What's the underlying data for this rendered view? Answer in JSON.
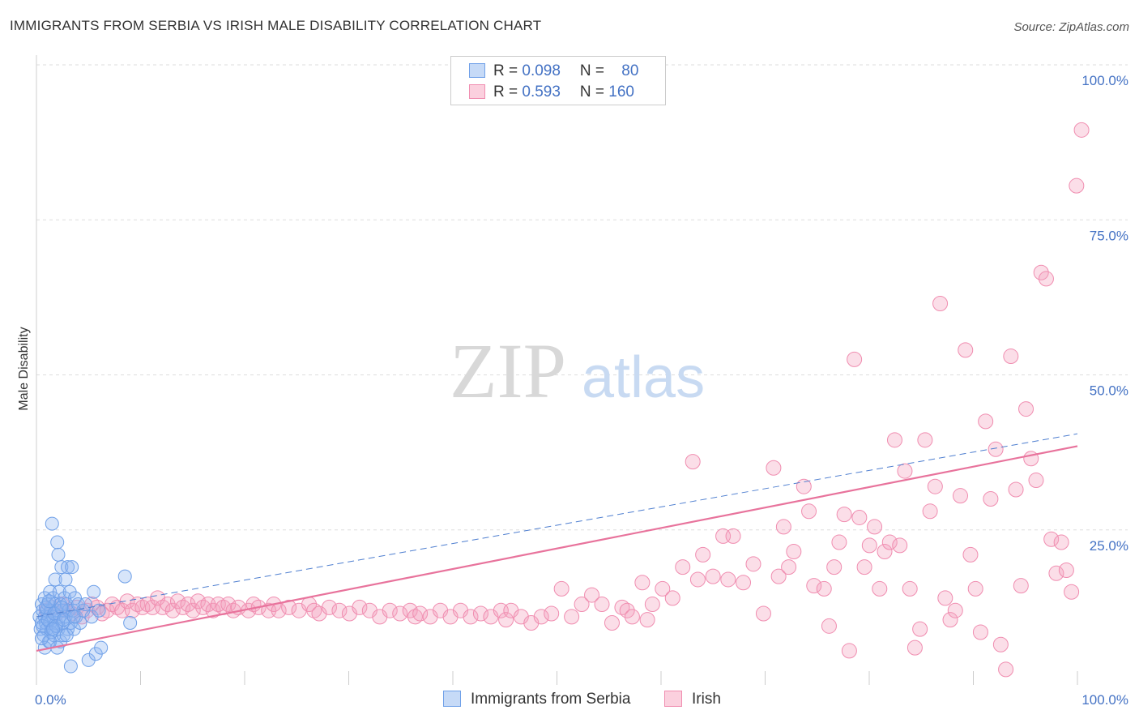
{
  "header": {
    "title": "IMMIGRANTS FROM SERBIA VS IRISH MALE DISABILITY CORRELATION CHART",
    "source": "Source: ZipAtlas.com"
  },
  "watermark": {
    "zip": "ZIP",
    "atlas": "atlas"
  },
  "legend": {
    "rows": [
      {
        "r_label": "R = ",
        "r_value": "0.098",
        "n_label": "N = ",
        "n_value": "80",
        "color": "#6fa0e8"
      },
      {
        "r_label": "R = ",
        "r_value": "0.593",
        "n_label": "N = ",
        "n_value": "160",
        "color": "#f08db0"
      }
    ]
  },
  "bottom_legend": {
    "serbia_label": "Immigrants from Serbia",
    "irish_label": "Irish"
  },
  "chart_data": {
    "type": "scatter",
    "title": "IMMIGRANTS FROM SERBIA VS IRISH MALE DISABILITY CORRELATION CHART",
    "xlabel": "",
    "ylabel": "Male Disability",
    "xlim": [
      0,
      100
    ],
    "ylim": [
      0,
      100
    ],
    "x_tick_labels": [
      "0.0%",
      "100.0%"
    ],
    "y_tick_labels": [
      "25.0%",
      "50.0%",
      "75.0%",
      "100.0%"
    ],
    "y_ticks": [
      25,
      50,
      75,
      100
    ],
    "colors": {
      "serbia": "#6fa0e8",
      "irish": "#f08db0",
      "serbia_line": "#4f7fd0",
      "irish_line": "#e8739c"
    },
    "series": [
      {
        "name": "Immigrants from Serbia",
        "r": 0.098,
        "n": 80,
        "trend": {
          "x": [
            0,
            100
          ],
          "y": [
            11.0,
            40.5
          ],
          "style": "dashed"
        },
        "points": [
          [
            0.3,
            11
          ],
          [
            0.4,
            9
          ],
          [
            0.5,
            13
          ],
          [
            0.5,
            10
          ],
          [
            0.6,
            12
          ],
          [
            0.7,
            8
          ],
          [
            0.8,
            11
          ],
          [
            0.8,
            14
          ],
          [
            0.9,
            10
          ],
          [
            1.0,
            12
          ],
          [
            1.0,
            9
          ],
          [
            1.1,
            13
          ],
          [
            1.2,
            11
          ],
          [
            1.2,
            7
          ],
          [
            1.3,
            15
          ],
          [
            1.3,
            10
          ],
          [
            1.4,
            12
          ],
          [
            1.5,
            9
          ],
          [
            1.5,
            26
          ],
          [
            1.6,
            14
          ],
          [
            1.6,
            11
          ],
          [
            1.7,
            8
          ],
          [
            1.8,
            13
          ],
          [
            1.8,
            17
          ],
          [
            1.9,
            10
          ],
          [
            2.0,
            12
          ],
          [
            2.0,
            23
          ],
          [
            2.1,
            9
          ],
          [
            2.1,
            21
          ],
          [
            2.2,
            15
          ],
          [
            2.2,
            11
          ],
          [
            2.3,
            13
          ],
          [
            2.3,
            7
          ],
          [
            2.4,
            19
          ],
          [
            2.5,
            10
          ],
          [
            2.5,
            12
          ],
          [
            2.6,
            8
          ],
          [
            2.7,
            14
          ],
          [
            2.8,
            11
          ],
          [
            2.8,
            17
          ],
          [
            2.9,
            13
          ],
          [
            3.0,
            19
          ],
          [
            3.0,
            9
          ],
          [
            3.1,
            12
          ],
          [
            3.2,
            15
          ],
          [
            3.3,
            10
          ],
          [
            3.3,
            3
          ],
          [
            3.4,
            19
          ],
          [
            3.5,
            12
          ],
          [
            3.6,
            9
          ],
          [
            3.7,
            14
          ],
          [
            3.8,
            11
          ],
          [
            4.0,
            13
          ],
          [
            4.2,
            10
          ],
          [
            4.5,
            12
          ],
          [
            4.7,
            13
          ],
          [
            5.0,
            4
          ],
          [
            5.3,
            11
          ],
          [
            5.5,
            15
          ],
          [
            5.7,
            5
          ],
          [
            6.0,
            12
          ],
          [
            6.2,
            6
          ],
          [
            0.6,
            9.5
          ],
          [
            0.9,
            12.5
          ],
          [
            1.1,
            10.5
          ],
          [
            1.4,
            8.5
          ],
          [
            1.7,
            11.5
          ],
          [
            1.9,
            9.5
          ],
          [
            2.4,
            12.5
          ],
          [
            2.6,
            10.5
          ],
          [
            0.8,
            6
          ],
          [
            1.3,
            7
          ],
          [
            2.0,
            6
          ],
          [
            1.6,
            9
          ],
          [
            0.5,
            7.5
          ],
          [
            1.2,
            13.5
          ],
          [
            2.9,
            8
          ],
          [
            3.6,
            11
          ],
          [
            8.5,
            17.5
          ],
          [
            9.0,
            10
          ]
        ]
      },
      {
        "name": "Irish",
        "r": 0.593,
        "n": 160,
        "trend": {
          "x": [
            0,
            100
          ],
          "y": [
            5.5,
            38.5
          ],
          "style": "solid"
        },
        "points": [
          [
            1,
            12
          ],
          [
            1.5,
            12.5
          ],
          [
            2,
            11.5
          ],
          [
            2.5,
            13
          ],
          [
            3,
            12
          ],
          [
            3.5,
            11.5
          ],
          [
            4,
            12.5
          ],
          [
            4.5,
            11
          ],
          [
            5,
            12
          ],
          [
            5.5,
            13
          ],
          [
            6,
            12.5
          ],
          [
            6.5,
            11.5
          ],
          [
            7,
            12
          ],
          [
            7.5,
            13
          ],
          [
            8,
            12.5
          ],
          [
            8.5,
            12
          ],
          [
            9,
            13.5
          ],
          [
            9.5,
            12
          ],
          [
            10,
            13
          ],
          [
            10.5,
            12.5
          ],
          [
            11,
            13
          ],
          [
            11.5,
            12.5
          ],
          [
            12,
            14
          ],
          [
            12.5,
            12.5
          ],
          [
            13,
            13
          ],
          [
            13.5,
            12
          ],
          [
            14,
            13.5
          ],
          [
            14.5,
            12.5
          ],
          [
            15,
            13
          ],
          [
            15.5,
            12
          ],
          [
            16,
            13.5
          ],
          [
            16.5,
            12.5
          ],
          [
            17,
            13
          ],
          [
            17.5,
            12
          ],
          [
            18,
            13
          ],
          [
            18.5,
            12.5
          ],
          [
            19,
            13
          ],
          [
            19.5,
            12
          ],
          [
            20,
            12.5
          ],
          [
            21,
            12
          ],
          [
            21.5,
            13
          ],
          [
            22,
            12.5
          ],
          [
            23,
            12
          ],
          [
            23.5,
            13
          ],
          [
            24,
            12
          ],
          [
            25,
            12.5
          ],
          [
            26,
            12
          ],
          [
            27,
            13
          ],
          [
            27.5,
            12
          ],
          [
            28,
            11.5
          ],
          [
            29,
            12.5
          ],
          [
            30,
            12
          ],
          [
            31,
            11.5
          ],
          [
            32,
            12.5
          ],
          [
            33,
            12
          ],
          [
            34,
            11
          ],
          [
            35,
            12
          ],
          [
            36,
            11.5
          ],
          [
            37,
            12
          ],
          [
            37.5,
            11
          ],
          [
            38,
            11.5
          ],
          [
            39,
            11
          ],
          [
            40,
            12
          ],
          [
            41,
            11
          ],
          [
            42,
            12
          ],
          [
            43,
            11
          ],
          [
            44,
            11.5
          ],
          [
            45,
            11
          ],
          [
            46,
            12
          ],
          [
            46.5,
            10.5
          ],
          [
            47,
            12
          ],
          [
            48,
            11
          ],
          [
            49,
            10
          ],
          [
            50,
            11
          ],
          [
            51,
            11.5
          ],
          [
            52,
            15.5
          ],
          [
            53,
            11
          ],
          [
            54,
            13
          ],
          [
            55,
            14.5
          ],
          [
            56,
            13
          ],
          [
            57,
            10
          ],
          [
            58,
            12.5
          ],
          [
            58.5,
            12
          ],
          [
            59,
            11
          ],
          [
            60,
            16.5
          ],
          [
            60.5,
            10.5
          ],
          [
            61,
            13
          ],
          [
            62,
            15.5
          ],
          [
            63,
            14
          ],
          [
            64,
            19
          ],
          [
            65,
            36
          ],
          [
            65.5,
            17
          ],
          [
            66,
            21
          ],
          [
            67,
            17.5
          ],
          [
            68,
            24
          ],
          [
            68.5,
            17
          ],
          [
            69,
            24
          ],
          [
            70,
            16.5
          ],
          [
            71,
            19.5
          ],
          [
            72,
            11.5
          ],
          [
            73,
            35
          ],
          [
            73.5,
            17.5
          ],
          [
            74,
            25.5
          ],
          [
            74.5,
            19
          ],
          [
            75,
            21.5
          ],
          [
            76,
            32
          ],
          [
            76.5,
            28
          ],
          [
            77,
            16
          ],
          [
            78,
            15.5
          ],
          [
            78.5,
            9.5
          ],
          [
            79,
            19
          ],
          [
            79.5,
            23
          ],
          [
            80,
            27.5
          ],
          [
            80.5,
            5.5
          ],
          [
            81,
            52.5
          ],
          [
            81.5,
            27
          ],
          [
            82,
            19
          ],
          [
            82.5,
            22.5
          ],
          [
            83,
            25.5
          ],
          [
            83.5,
            15.5
          ],
          [
            84,
            21.5
          ],
          [
            84.5,
            23
          ],
          [
            85,
            39.5
          ],
          [
            85.5,
            22.5
          ],
          [
            86,
            34.5
          ],
          [
            86.5,
            15.5
          ],
          [
            87,
            6
          ],
          [
            87.5,
            9
          ],
          [
            88,
            39.5
          ],
          [
            88.5,
            28
          ],
          [
            89,
            32
          ],
          [
            89.5,
            61.5
          ],
          [
            90,
            14
          ],
          [
            90.5,
            10.5
          ],
          [
            91,
            12
          ],
          [
            91.5,
            30.5
          ],
          [
            92,
            54
          ],
          [
            92.5,
            21
          ],
          [
            93,
            15.5
          ],
          [
            93.5,
            8.5
          ],
          [
            94,
            42.5
          ],
          [
            94.5,
            30
          ],
          [
            95,
            38
          ],
          [
            95.5,
            6.5
          ],
          [
            96,
            2.5
          ],
          [
            96.5,
            53
          ],
          [
            97,
            31.5
          ],
          [
            97.5,
            16
          ],
          [
            98,
            44.5
          ],
          [
            98.5,
            36.5
          ],
          [
            99,
            33
          ],
          [
            99.5,
            66.5
          ],
          [
            100,
            65.5
          ],
          [
            100.5,
            23.5
          ],
          [
            101,
            18
          ],
          [
            101.5,
            23
          ],
          [
            102,
            18.5
          ],
          [
            102.5,
            15
          ],
          [
            103,
            80.5
          ],
          [
            103.5,
            89.5
          ]
        ]
      }
    ]
  }
}
